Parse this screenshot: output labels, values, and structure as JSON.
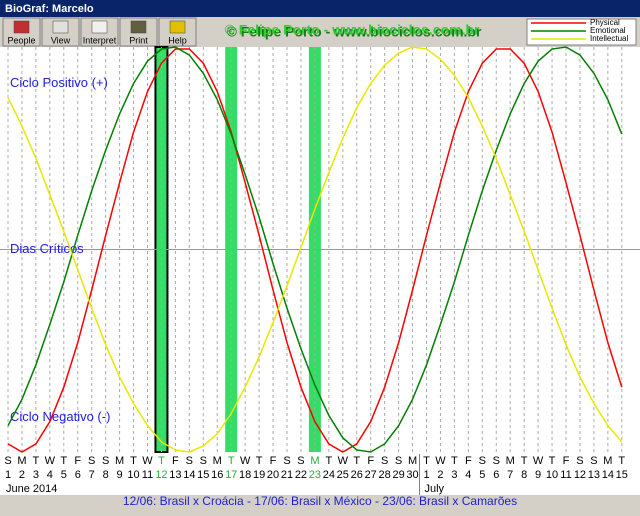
{
  "window": {
    "title": "BioGraf: Marcelo"
  },
  "toolbar": [
    "People",
    "View",
    "Interpret",
    "Print",
    "Help"
  ],
  "watermark": "© Felipe Porto - www.biociclos.com.br",
  "footer": "12/06: Brasil x Croácia - 17/06: Brasil x México - 23/06: Brasil x Camarões",
  "chart_data": {
    "type": "line",
    "ylim": [
      -100,
      100
    ],
    "annotations": [
      {
        "text": "Ciclo Positivo (+)",
        "y": 82
      },
      {
        "text": "Dias Críticos",
        "y": 0
      },
      {
        "text": "Ciclo Negativo (-)",
        "y": -83
      }
    ],
    "categories": [
      "1",
      "2",
      "3",
      "4",
      "5",
      "6",
      "7",
      "8",
      "9",
      "10",
      "11",
      "12",
      "13",
      "14",
      "15",
      "16",
      "17",
      "18",
      "19",
      "20",
      "21",
      "22",
      "23",
      "24",
      "25",
      "26",
      "27",
      "28",
      "29",
      "30",
      "1",
      "2",
      "3",
      "4",
      "5",
      "6",
      "7",
      "8",
      "9",
      "10",
      "11",
      "12",
      "13",
      "14",
      "15"
    ],
    "weekdays": [
      "S",
      "M",
      "T",
      "W",
      "T",
      "F",
      "S",
      "S",
      "M",
      "T",
      "W",
      "T",
      "F",
      "S",
      "S",
      "M",
      "T",
      "W",
      "T",
      "F",
      "S",
      "S",
      "M",
      "T",
      "W",
      "T",
      "F",
      "S",
      "S",
      "M",
      "T",
      "W",
      "T",
      "F",
      "S",
      "S",
      "M",
      "T",
      "W",
      "T",
      "F",
      "S",
      "S",
      "M",
      "T"
    ],
    "months": [
      {
        "label": "June 2014",
        "start": "1"
      },
      {
        "label": "July",
        "start": "1"
      }
    ],
    "highlight": {
      "color": "#33dd66",
      "days": [
        "12",
        "17",
        "23"
      ]
    },
    "series": [
      {
        "name": "Physical",
        "color": "#ff0000",
        "values": [
          -96,
          -100,
          -96,
          -85,
          -68,
          -46,
          -20,
          7,
          33,
          58,
          78,
          92,
          99,
          99,
          92,
          78,
          58,
          33,
          7,
          -20,
          -46,
          -68,
          -85,
          -96,
          -100,
          -96,
          -85,
          -68,
          -46,
          -20,
          7,
          33,
          58,
          78,
          92,
          99,
          99,
          92,
          78,
          58,
          33,
          7,
          -20,
          -46,
          -68
        ]
      },
      {
        "name": "Emotional",
        "color": "#008000",
        "values": [
          -87,
          -74,
          -57,
          -37,
          -16,
          7,
          29,
          49,
          67,
          82,
          93,
          99,
          100,
          96,
          87,
          74,
          57,
          37,
          16,
          -7,
          -29,
          -49,
          -67,
          -82,
          -93,
          -99,
          -100,
          -96,
          -87,
          -74,
          -57,
          -37,
          -16,
          7,
          29,
          49,
          67,
          82,
          93,
          99,
          100,
          96,
          87,
          74,
          57
        ]
      },
      {
        "name": "Intellectual",
        "color": "#e8e800",
        "values": [
          75,
          61,
          45,
          27,
          9,
          -10,
          -29,
          -47,
          -63,
          -76,
          -87,
          -95,
          -99,
          -100,
          -97,
          -91,
          -81,
          -68,
          -53,
          -36,
          -18,
          1,
          20,
          38,
          55,
          70,
          82,
          91,
          97,
          100,
          99,
          94,
          86,
          75,
          61,
          45,
          27,
          9,
          -10,
          -29,
          -47,
          -63,
          -76,
          -87,
          -95
        ]
      }
    ]
  }
}
